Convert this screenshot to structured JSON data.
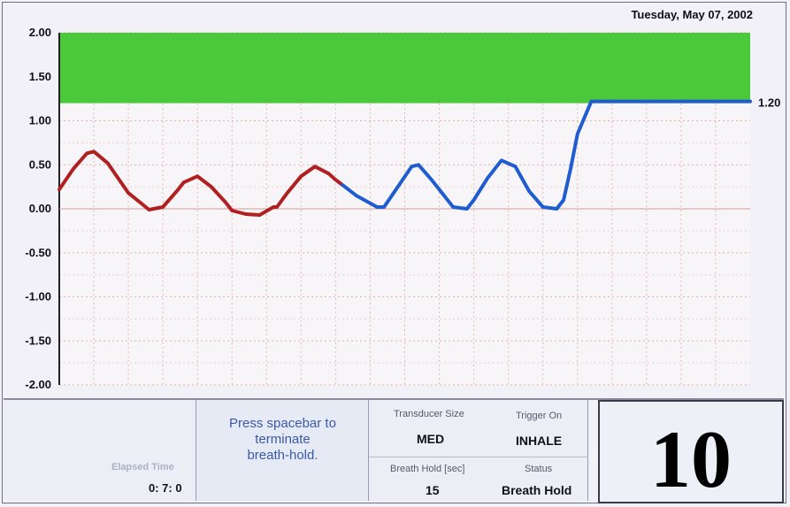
{
  "header": {
    "date": "Tuesday, May 07, 2002"
  },
  "chart_data": {
    "type": "line",
    "y_ticks": [
      "2.00",
      "1.50",
      "1.00",
      "0.50",
      "0.00",
      "-0.50",
      "-1.00",
      "-1.50",
      "-2.00"
    ],
    "ylim": [
      -2.0,
      2.0
    ],
    "xlim": [
      0,
      100
    ],
    "grid": true,
    "threshold_band": {
      "from": 1.2,
      "to": 2.0,
      "color": "#4cc93a"
    },
    "target_label": "1.20",
    "target_value": 1.2,
    "series": [
      {
        "color": "#b02020",
        "x": [
          0,
          2,
          4,
          5,
          7,
          10,
          13,
          15,
          17,
          18,
          20,
          22,
          24,
          25,
          27,
          29,
          31,
          31.5,
          33,
          35,
          37,
          39,
          40,
          41
        ],
        "y": [
          0.22,
          0.45,
          0.63,
          0.65,
          0.52,
          0.18,
          -0.01,
          0.02,
          0.2,
          0.3,
          0.37,
          0.25,
          0.08,
          -0.02,
          -0.06,
          -0.07,
          0.02,
          0.02,
          0.18,
          0.37,
          0.48,
          0.4,
          0.33,
          0.27
        ]
      },
      {
        "color": "#1f5cd0",
        "x": [
          41,
          43,
          46,
          47,
          49,
          51,
          52,
          54,
          57,
          59,
          60,
          62,
          64,
          66,
          68,
          70,
          72,
          73,
          74,
          75,
          77,
          80,
          100
        ],
        "y": [
          0.27,
          0.15,
          0.02,
          0.02,
          0.25,
          0.48,
          0.5,
          0.32,
          0.02,
          0.0,
          0.1,
          0.35,
          0.55,
          0.48,
          0.2,
          0.02,
          0.0,
          0.1,
          0.45,
          0.85,
          1.22,
          1.22,
          1.22
        ]
      }
    ]
  },
  "status": {
    "elapsed_label": "Elapsed Time",
    "elapsed_value": "0: 7: 0",
    "message": "Press spacebar to\nterminate\nbreath-hold.",
    "transducer_label": "Transducer Size",
    "transducer_value": "MED",
    "trigger_label": "Trigger On",
    "trigger_value": "INHALE",
    "breath_hold_label": "Breath Hold [sec]",
    "breath_hold_value": "15",
    "status_label": "Status",
    "status_value": "Breath Hold",
    "counter": "10"
  }
}
